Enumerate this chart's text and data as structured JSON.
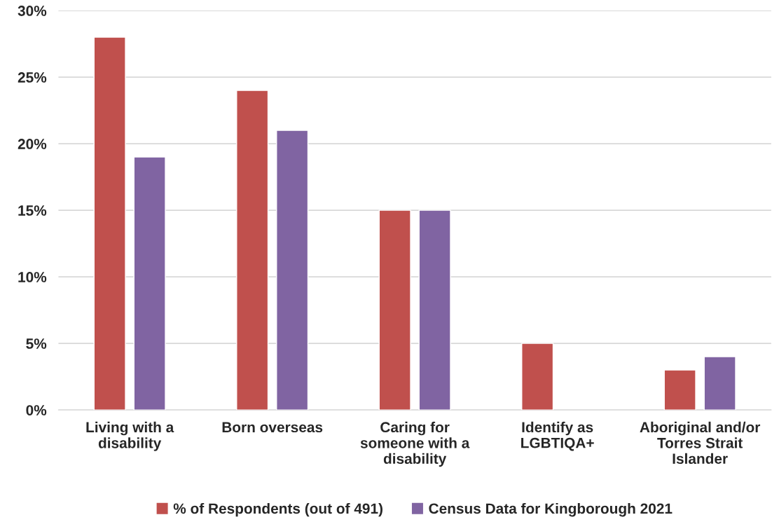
{
  "chart_data": {
    "type": "bar",
    "categories": [
      "Living with a\ndisability",
      "Born overseas",
      "Caring for\nsomeone with a\ndisability",
      "Identify as\nLGBTIQA+",
      "Aboriginal and/or\nTorres Strait\nIslander"
    ],
    "series": [
      {
        "name": "% of Respondents (out of 491)",
        "color": "#c0504d",
        "values": [
          28,
          24,
          15,
          5,
          3
        ]
      },
      {
        "name": "Census Data for Kingborough 2021",
        "color": "#8064a2",
        "values": [
          19,
          21,
          15,
          null,
          4
        ]
      }
    ],
    "ylim": [
      0,
      30
    ],
    "yticks": [
      {
        "value": 0,
        "label": "0%"
      },
      {
        "value": 5,
        "label": "5%"
      },
      {
        "value": 10,
        "label": "10%"
      },
      {
        "value": 15,
        "label": "15%"
      },
      {
        "value": 20,
        "label": "20%"
      },
      {
        "value": 25,
        "label": "25%"
      },
      {
        "value": 30,
        "label": "30%"
      }
    ],
    "grid": "y",
    "legend": "bottom"
  }
}
